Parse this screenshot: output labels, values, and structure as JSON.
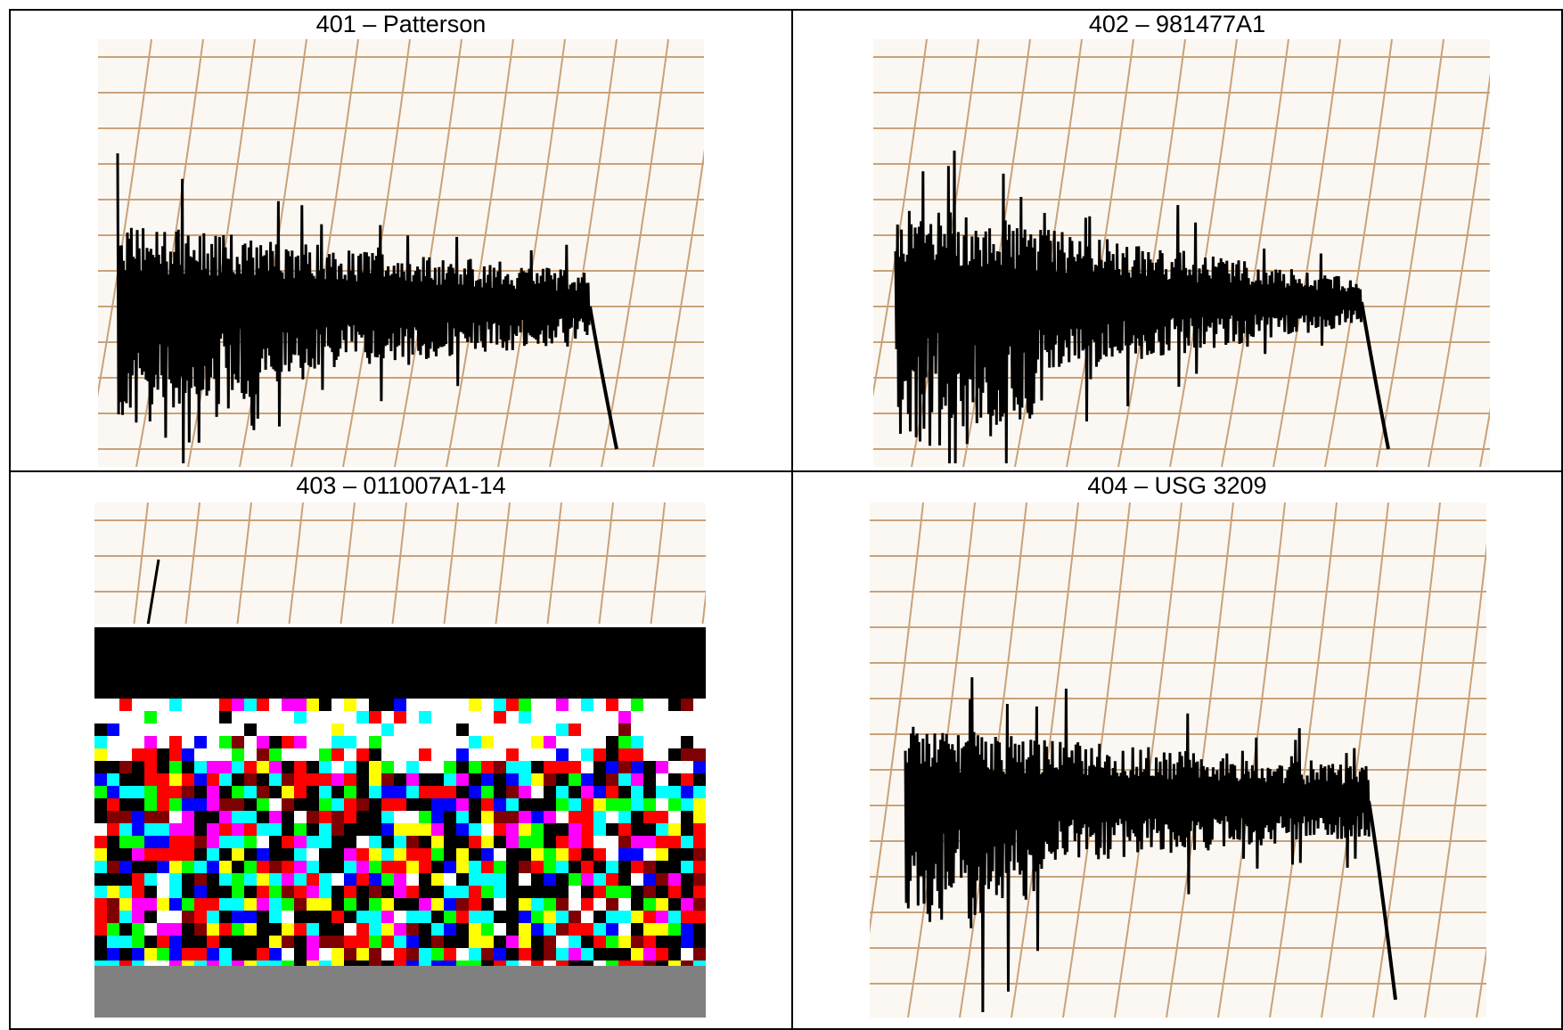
{
  "table": {
    "rows": [
      [
        "401 – Patterson",
        "402 – 981477A1"
      ],
      [
        "403 – 011007A1-14",
        "404 – USG 3209"
      ]
    ]
  }
}
